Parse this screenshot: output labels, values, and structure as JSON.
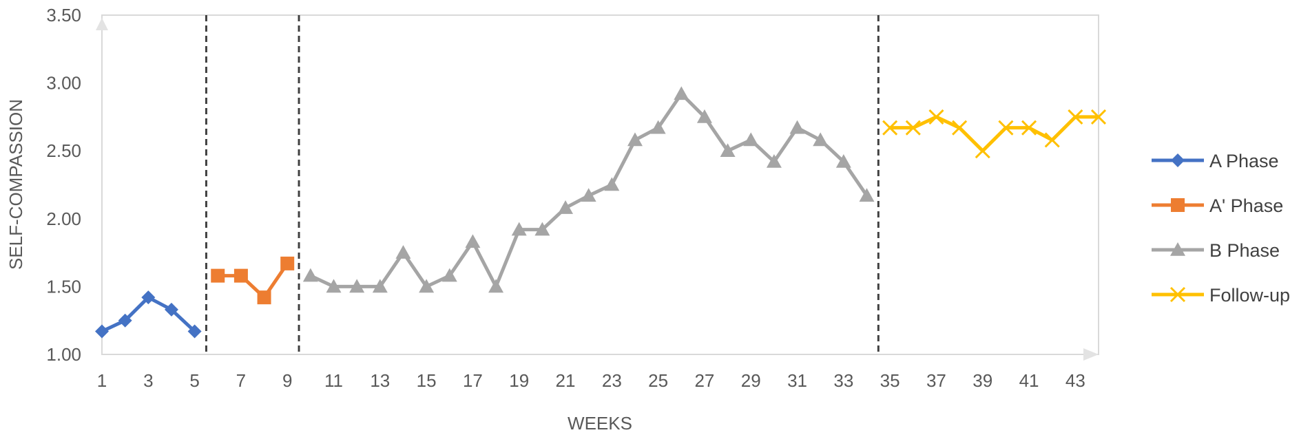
{
  "chart_data": {
    "type": "line",
    "xlabel": "WEEKS",
    "ylabel": "SELF-COMPASSION",
    "ylim": [
      1.0,
      3.5
    ],
    "xlim": [
      1,
      44
    ],
    "y_ticks": [
      "1.00",
      "1.50",
      "2.00",
      "2.50",
      "3.00",
      "3.50"
    ],
    "x_ticks": [
      "1",
      "3",
      "5",
      "7",
      "9",
      "11",
      "13",
      "15",
      "17",
      "19",
      "21",
      "23",
      "25",
      "27",
      "29",
      "31",
      "33",
      "35",
      "37",
      "39",
      "41",
      "43"
    ],
    "grid": false,
    "legend_position": "right",
    "phase_change_lines": [
      5.5,
      9.5,
      34.5
    ],
    "series": [
      {
        "name": "A Phase",
        "color": "#4472C4",
        "marker": "diamond",
        "x": [
          1,
          2,
          3,
          4,
          5
        ],
        "values": [
          1.17,
          1.25,
          1.42,
          1.33,
          1.17
        ]
      },
      {
        "name": "A' Phase",
        "color": "#ED7D31",
        "marker": "square",
        "x": [
          6,
          7,
          8,
          9
        ],
        "values": [
          1.58,
          1.58,
          1.42,
          1.67
        ]
      },
      {
        "name": "B Phase",
        "color": "#A5A5A5",
        "marker": "triangle",
        "x": [
          10,
          11,
          12,
          13,
          14,
          15,
          16,
          17,
          18,
          19,
          20,
          21,
          22,
          23,
          24,
          25,
          26,
          27,
          28,
          29,
          30,
          31,
          32,
          33,
          34
        ],
        "values": [
          1.58,
          1.5,
          1.5,
          1.5,
          1.75,
          1.5,
          1.58,
          1.83,
          1.5,
          1.92,
          1.92,
          2.08,
          2.17,
          2.25,
          2.58,
          2.67,
          2.92,
          2.75,
          2.5,
          2.58,
          2.42,
          2.67,
          2.58,
          2.42,
          2.17
        ]
      },
      {
        "name": "Follow-up",
        "color": "#FFC000",
        "marker": "x",
        "x": [
          35,
          36,
          37,
          38,
          39,
          40,
          41,
          42,
          43,
          44
        ],
        "values": [
          2.67,
          2.67,
          2.75,
          2.67,
          2.5,
          2.67,
          2.67,
          2.58,
          2.75,
          2.75
        ]
      }
    ]
  }
}
